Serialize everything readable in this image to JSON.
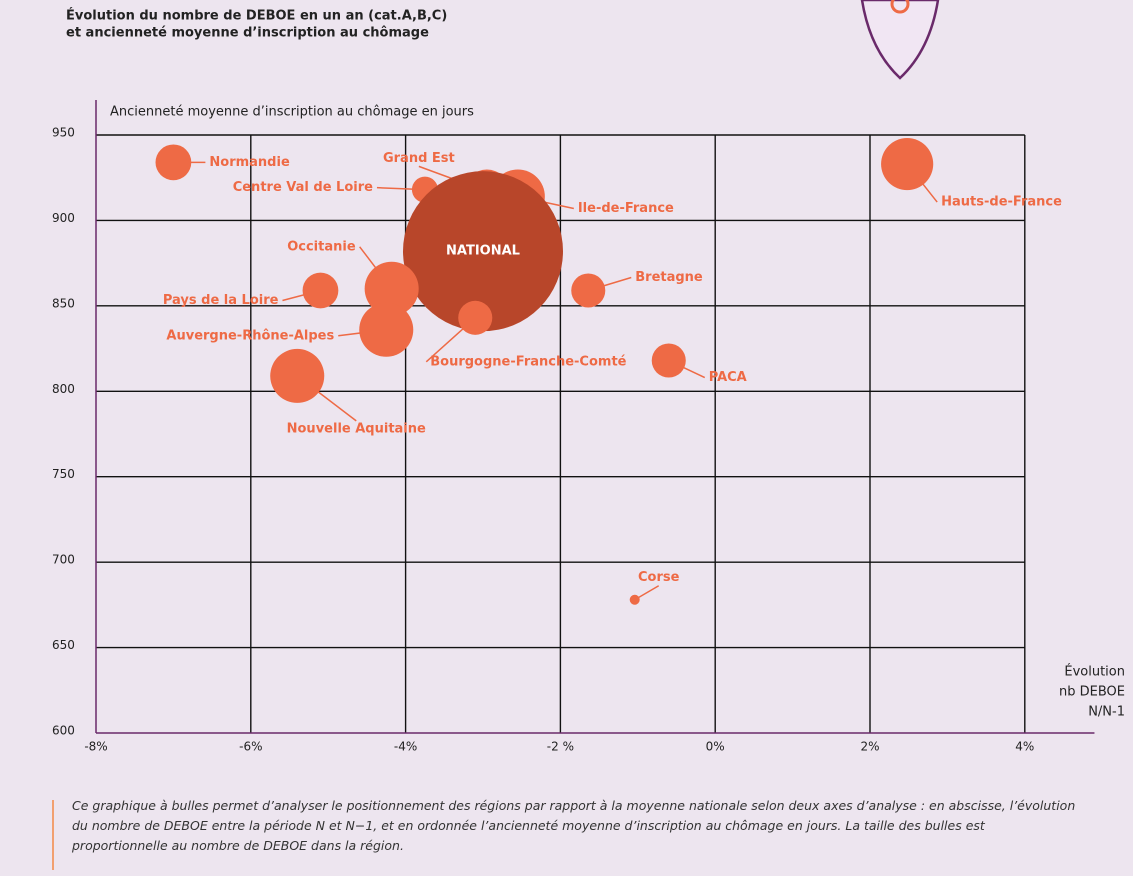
{
  "chart_data": {
    "type": "bubble",
    "title": [
      "Évolution du nombre de DEBOE en un an (cat.A,B,C)",
      "et ancienneté moyenne d’inscription au chômage"
    ],
    "y_label": "Ancienneté moyenne d’inscription au chômage en jours",
    "x_label": [
      "Évolution",
      "nb DEBOE",
      "N/N-1"
    ],
    "labels": [
      "Normandie",
      "Centre Val de Loire",
      "Grand Est",
      "Ile-de-France",
      "NATIONAL",
      "Occitanie",
      "Pays de la Loire",
      "Auvergne-Rhône-Alpes",
      "Bourgogne-Franche-Comté",
      "Bretagne",
      "PACA",
      "Nouvelle Aquitaine",
      "Hauts-de-France",
      "Corse"
    ],
    "x": [
      -7.0,
      -3.75,
      -2.95,
      -2.55,
      -3.0,
      -4.18,
      -5.1,
      -4.25,
      -3.1,
      -1.64,
      -0.6,
      -5.4,
      2.48,
      -1.04
    ],
    "y": [
      934,
      918,
      917,
      914,
      882,
      860,
      859,
      836,
      843,
      859,
      818,
      809,
      933,
      678
    ],
    "sizes": [
      32,
      17,
      48,
      73,
      640,
      73,
      32,
      73,
      29,
      29,
      29,
      73,
      68,
      2.5
    ],
    "color": "#ee6a45",
    "national_color": "#b8462a",
    "xlim": [
      -8,
      4.9
    ],
    "ylim": [
      600,
      950
    ],
    "xticks": [
      {
        "value": -8,
        "label": "-8%"
      },
      {
        "value": -6,
        "label": "-6%"
      },
      {
        "value": -4,
        "label": "-4%"
      },
      {
        "value": -2,
        "label": "-2 %"
      },
      {
        "value": 0,
        "label": "0%"
      },
      {
        "value": 2,
        "label": "2%"
      },
      {
        "value": 4,
        "label": "4%"
      }
    ],
    "yticks": [
      600,
      650,
      700,
      750,
      800,
      850,
      900,
      950
    ],
    "grid": true,
    "caption": "Ce graphique à bulles permet d’analyser le positionnement des régions par rapport à la moyenne nationale selon deux axes d’analyse : en abscisse, l’évolution du nombre de DEBOE entre la période N et N−1, et en ordonnée l’ancienneté moyenne d’inscription au chômage en jours. La taille des bulles est proportionnelle au nombre de DEBOE dans la région."
  }
}
